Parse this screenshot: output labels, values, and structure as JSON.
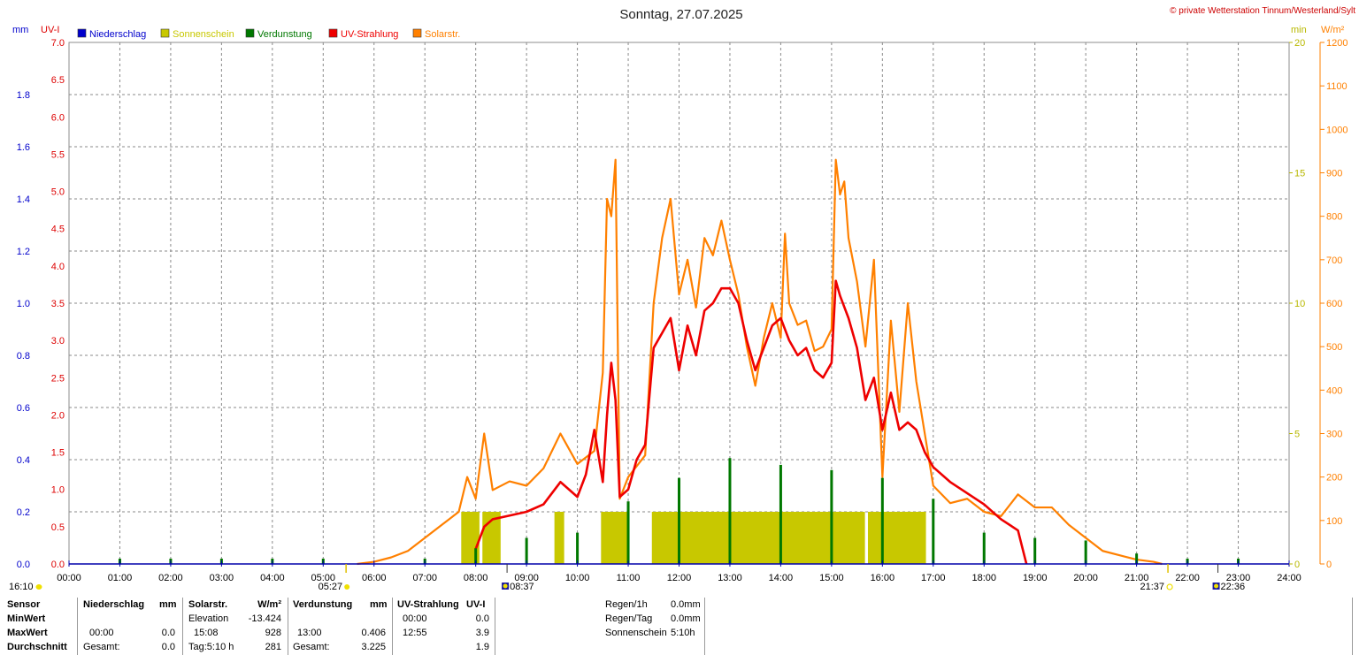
{
  "chart_data": {
    "type": "line",
    "title": "Sonntag, 27.07.2025",
    "copyright": "© private Wetterstation Tinnum/Westerland/Sylt",
    "axis_titles": {
      "mm": "mm",
      "uvi": "UV-I",
      "min": "min",
      "wm2": "W/m²"
    },
    "legend": [
      {
        "label": "Niederschlag",
        "color": "#0000cc"
      },
      {
        "label": "Sonnenschein",
        "color": "#c8c800"
      },
      {
        "label": "Verdunstung",
        "color": "#007800"
      },
      {
        "label": "UV-Strahlung",
        "color": "#ee0000"
      },
      {
        "label": "Solarstr.",
        "color": "#ff8000"
      }
    ],
    "x_ticks": [
      "00:00",
      "01:00",
      "02:00",
      "03:00",
      "04:00",
      "05:00",
      "06:00",
      "07:00",
      "08:00",
      "09:00",
      "10:00",
      "11:00",
      "12:00",
      "13:00",
      "14:00",
      "15:00",
      "16:00",
      "17:00",
      "18:00",
      "19:00",
      "20:00",
      "21:00",
      "22:00",
      "23:00",
      "24:00"
    ],
    "mm_ticks": [
      "0.0",
      "0.2",
      "0.4",
      "0.6",
      "0.8",
      "1.0",
      "1.2",
      "1.4",
      "1.6",
      "1.8"
    ],
    "uvi_ticks": [
      "0.0",
      "0.5",
      "1.0",
      "1.5",
      "2.0",
      "2.5",
      "3.0",
      "3.5",
      "4.0",
      "4.5",
      "5.0",
      "5.5",
      "6.0",
      "6.5",
      "7.0"
    ],
    "min_ticks": [
      "0",
      "5",
      "10",
      "15",
      "20"
    ],
    "wm2_ticks": [
      "0",
      "100",
      "200",
      "300",
      "400",
      "500",
      "600",
      "700",
      "800",
      "900",
      "1000",
      "1100",
      "1200"
    ],
    "ylim": {
      "mm": [
        0,
        2.0
      ],
      "uvi": [
        0,
        7.0
      ],
      "min": [
        0,
        20
      ],
      "wm2": [
        0,
        1200
      ]
    },
    "grid": true,
    "events": {
      "moonset": "16:10",
      "sunrise": "05:27",
      "moon_a": "08:37",
      "sunset": "21:37",
      "moon_b": "22:36"
    },
    "solar_wm2": [
      [
        "05:40",
        0
      ],
      [
        "06:00",
        5
      ],
      [
        "06:20",
        15
      ],
      [
        "06:40",
        30
      ],
      [
        "07:00",
        60
      ],
      [
        "07:20",
        90
      ],
      [
        "07:40",
        120
      ],
      [
        "07:50",
        200
      ],
      [
        "08:00",
        150
      ],
      [
        "08:10",
        300
      ],
      [
        "08:20",
        170
      ],
      [
        "08:40",
        190
      ],
      [
        "09:00",
        180
      ],
      [
        "09:20",
        220
      ],
      [
        "09:40",
        300
      ],
      [
        "10:00",
        230
      ],
      [
        "10:20",
        260
      ],
      [
        "10:30",
        440
      ],
      [
        "10:35",
        840
      ],
      [
        "10:40",
        800
      ],
      [
        "10:45",
        930
      ],
      [
        "10:50",
        150
      ],
      [
        "11:00",
        200
      ],
      [
        "11:20",
        250
      ],
      [
        "11:30",
        600
      ],
      [
        "11:40",
        750
      ],
      [
        "11:50",
        840
      ],
      [
        "12:00",
        620
      ],
      [
        "12:10",
        700
      ],
      [
        "12:20",
        590
      ],
      [
        "12:30",
        750
      ],
      [
        "12:40",
        710
      ],
      [
        "12:50",
        790
      ],
      [
        "13:00",
        700
      ],
      [
        "13:10",
        620
      ],
      [
        "13:20",
        500
      ],
      [
        "13:30",
        410
      ],
      [
        "13:40",
        520
      ],
      [
        "13:50",
        600
      ],
      [
        "14:00",
        520
      ],
      [
        "14:05",
        760
      ],
      [
        "14:10",
        600
      ],
      [
        "14:20",
        550
      ],
      [
        "14:30",
        560
      ],
      [
        "14:40",
        490
      ],
      [
        "14:50",
        500
      ],
      [
        "15:00",
        540
      ],
      [
        "15:05",
        930
      ],
      [
        "15:10",
        850
      ],
      [
        "15:15",
        880
      ],
      [
        "15:20",
        750
      ],
      [
        "15:30",
        650
      ],
      [
        "15:40",
        500
      ],
      [
        "15:50",
        700
      ],
      [
        "16:00",
        200
      ],
      [
        "16:10",
        560
      ],
      [
        "16:20",
        350
      ],
      [
        "16:30",
        600
      ],
      [
        "16:40",
        420
      ],
      [
        "16:50",
        300
      ],
      [
        "17:00",
        180
      ],
      [
        "17:20",
        140
      ],
      [
        "17:40",
        150
      ],
      [
        "18:00",
        120
      ],
      [
        "18:20",
        110
      ],
      [
        "18:40",
        160
      ],
      [
        "19:00",
        130
      ],
      [
        "19:20",
        130
      ],
      [
        "19:40",
        90
      ],
      [
        "20:00",
        60
      ],
      [
        "20:20",
        30
      ],
      [
        "20:40",
        20
      ],
      [
        "21:00",
        10
      ],
      [
        "21:20",
        5
      ],
      [
        "21:30",
        0
      ]
    ],
    "uv_index": [
      [
        "08:00",
        0.2
      ],
      [
        "08:10",
        0.5
      ],
      [
        "08:20",
        0.6
      ],
      [
        "08:40",
        0.65
      ],
      [
        "09:00",
        0.7
      ],
      [
        "09:20",
        0.8
      ],
      [
        "09:40",
        1.1
      ],
      [
        "10:00",
        0.9
      ],
      [
        "10:10",
        1.2
      ],
      [
        "10:20",
        1.8
      ],
      [
        "10:30",
        1.1
      ],
      [
        "10:35",
        2.0
      ],
      [
        "10:40",
        2.7
      ],
      [
        "10:45",
        2.2
      ],
      [
        "10:50",
        0.9
      ],
      [
        "11:00",
        1.0
      ],
      [
        "11:10",
        1.4
      ],
      [
        "11:20",
        1.6
      ],
      [
        "11:30",
        2.9
      ],
      [
        "11:40",
        3.1
      ],
      [
        "11:50",
        3.3
      ],
      [
        "12:00",
        2.6
      ],
      [
        "12:10",
        3.2
      ],
      [
        "12:20",
        2.8
      ],
      [
        "12:30",
        3.4
      ],
      [
        "12:40",
        3.5
      ],
      [
        "12:50",
        3.7
      ],
      [
        "13:00",
        3.7
      ],
      [
        "13:10",
        3.5
      ],
      [
        "13:20",
        3.0
      ],
      [
        "13:30",
        2.6
      ],
      [
        "13:40",
        2.9
      ],
      [
        "13:50",
        3.2
      ],
      [
        "14:00",
        3.3
      ],
      [
        "14:10",
        3.0
      ],
      [
        "14:20",
        2.8
      ],
      [
        "14:30",
        2.9
      ],
      [
        "14:40",
        2.6
      ],
      [
        "14:50",
        2.5
      ],
      [
        "15:00",
        2.7
      ],
      [
        "15:05",
        3.8
      ],
      [
        "15:10",
        3.6
      ],
      [
        "15:20",
        3.3
      ],
      [
        "15:30",
        2.9
      ],
      [
        "15:40",
        2.2
      ],
      [
        "15:50",
        2.5
      ],
      [
        "16:00",
        1.8
      ],
      [
        "16:10",
        2.3
      ],
      [
        "16:20",
        1.8
      ],
      [
        "16:30",
        1.9
      ],
      [
        "16:40",
        1.8
      ],
      [
        "16:50",
        1.5
      ],
      [
        "17:00",
        1.3
      ],
      [
        "17:20",
        1.1
      ],
      [
        "17:40",
        0.95
      ],
      [
        "18:00",
        0.8
      ],
      [
        "18:20",
        0.6
      ],
      [
        "18:40",
        0.45
      ],
      [
        "18:50",
        0.0
      ]
    ],
    "verdunstung_mm": [
      [
        "01:00",
        0.005
      ],
      [
        "02:00",
        0.005
      ],
      [
        "03:00",
        0.005
      ],
      [
        "04:00",
        0.005
      ],
      [
        "05:00",
        0.005
      ],
      [
        "07:00",
        0.005
      ],
      [
        "08:00",
        0.06
      ],
      [
        "09:00",
        0.1
      ],
      [
        "10:00",
        0.12
      ],
      [
        "11:00",
        0.24
      ],
      [
        "12:00",
        0.33
      ],
      [
        "13:00",
        0.406
      ],
      [
        "14:00",
        0.38
      ],
      [
        "15:00",
        0.36
      ],
      [
        "16:00",
        0.33
      ],
      [
        "17:00",
        0.25
      ],
      [
        "18:00",
        0.12
      ],
      [
        "19:00",
        0.1
      ],
      [
        "20:00",
        0.09
      ],
      [
        "21:00",
        0.04
      ],
      [
        "22:00",
        0.005
      ],
      [
        "23:00",
        0.005
      ]
    ],
    "sonnenschein_min": [
      [
        "07:45",
        2
      ],
      [
        "07:55",
        2
      ],
      [
        "08:10",
        2
      ],
      [
        "08:20",
        2
      ],
      [
        "09:35",
        2
      ],
      [
        "10:30",
        2
      ],
      [
        "10:40",
        2
      ],
      [
        "10:50",
        2
      ],
      [
        "11:30",
        2
      ],
      [
        "11:40",
        2
      ],
      [
        "11:50",
        2
      ],
      [
        "12:00",
        2
      ],
      [
        "12:10",
        2
      ],
      [
        "12:20",
        2
      ],
      [
        "12:30",
        2
      ],
      [
        "12:40",
        2
      ],
      [
        "12:50",
        2
      ],
      [
        "13:00",
        2
      ],
      [
        "13:10",
        2
      ],
      [
        "13:20",
        2
      ],
      [
        "13:30",
        2
      ],
      [
        "13:40",
        2
      ],
      [
        "13:50",
        2
      ],
      [
        "14:00",
        2
      ],
      [
        "14:10",
        2
      ],
      [
        "14:20",
        2
      ],
      [
        "14:30",
        2
      ],
      [
        "14:40",
        2
      ],
      [
        "14:50",
        2
      ],
      [
        "15:00",
        2
      ],
      [
        "15:10",
        2
      ],
      [
        "15:20",
        2
      ],
      [
        "15:30",
        2
      ],
      [
        "15:45",
        2
      ],
      [
        "15:55",
        2
      ],
      [
        "16:05",
        2
      ],
      [
        "16:15",
        2
      ],
      [
        "16:25",
        2
      ],
      [
        "16:35",
        2
      ],
      [
        "16:42",
        2
      ]
    ]
  },
  "stats": {
    "row_labels": [
      "Sensor",
      "MinWert",
      "MaxWert",
      "Durchschnitt"
    ],
    "niederschlag": {
      "title": "Niederschlag",
      "unit": "mm",
      "max_time": "00:00",
      "max": "0.0",
      "total_label": "Gesamt:",
      "total": "0.0"
    },
    "solar": {
      "title": "Solarstr.",
      "unit": "W/m²",
      "elev_label": "Elevation",
      "min": "-13.424",
      "max_time": "15:08",
      "max": "928",
      "day_label": "Tag:5:10 h",
      "avg": "281"
    },
    "verdunstung": {
      "title": "Verdunstung",
      "unit": "mm",
      "max_time": "13:00",
      "max": "0.406",
      "total_label": "Gesamt:",
      "total": "3.225"
    },
    "uv": {
      "title": "UV-Strahlung",
      "unit": "UV-I",
      "min_time": "00:00",
      "min": "0.0",
      "max_time": "12:55",
      "max": "3.9",
      "avg": "1.9"
    },
    "regen": {
      "h_label": "Regen/1h",
      "h": "0.0mm",
      "day_label": "Regen/Tag",
      "day": "0.0mm",
      "sun_label": "Sonnenschein",
      "sun": "5:10h"
    }
  }
}
